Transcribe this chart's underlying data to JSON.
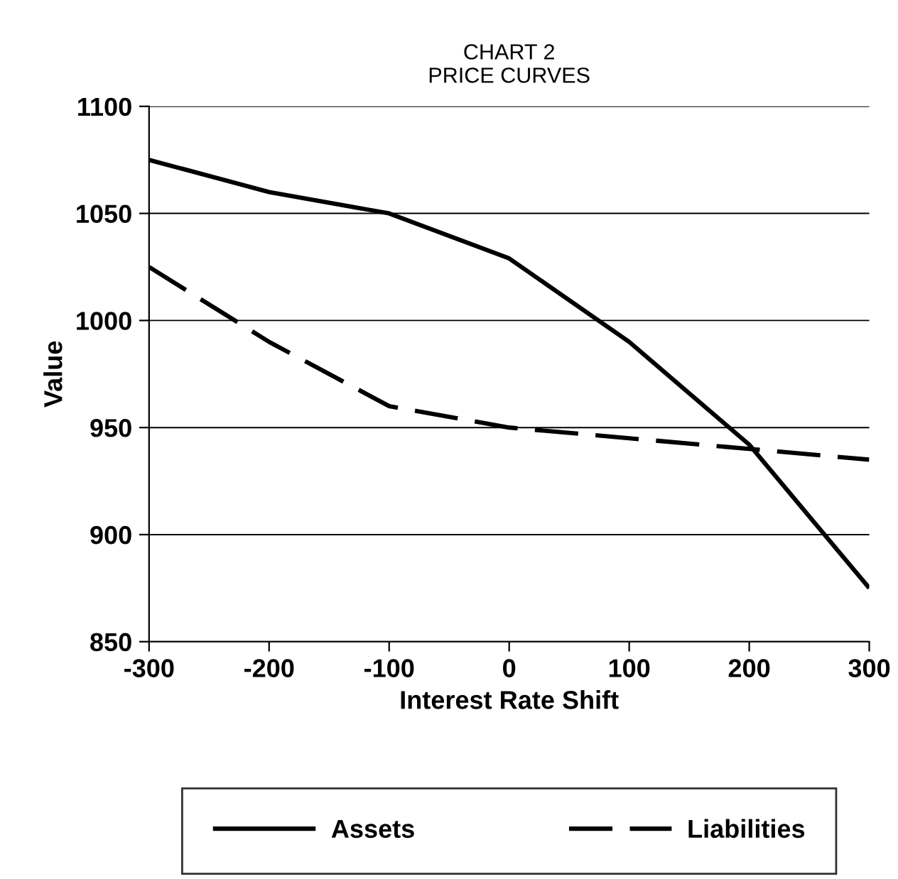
{
  "chart_data": {
    "type": "line",
    "title": "CHART 2\nPRICE CURVES",
    "xlabel": "Interest Rate Shift",
    "ylabel": "Value",
    "x": [
      -300,
      -200,
      -100,
      0,
      100,
      200,
      300
    ],
    "series": [
      {
        "name": "Assets",
        "color": "#000000",
        "line_style": "solid",
        "values": [
          1075,
          1060,
          1050,
          1029,
          990,
          942,
          875
        ]
      },
      {
        "name": "Liabilities",
        "color": "#000000",
        "line_style": "dashed",
        "values": [
          1025,
          990,
          960,
          950,
          945,
          940,
          935
        ]
      }
    ],
    "xlim": [
      -300,
      300
    ],
    "xticks": [
      -300,
      -200,
      -100,
      0,
      100,
      200,
      300
    ],
    "ylim": [
      850,
      1100
    ],
    "yticks": [
      850,
      900,
      950,
      1000,
      1050,
      1100
    ],
    "grid": "y",
    "legend": "bottom",
    "marker": "none"
  }
}
